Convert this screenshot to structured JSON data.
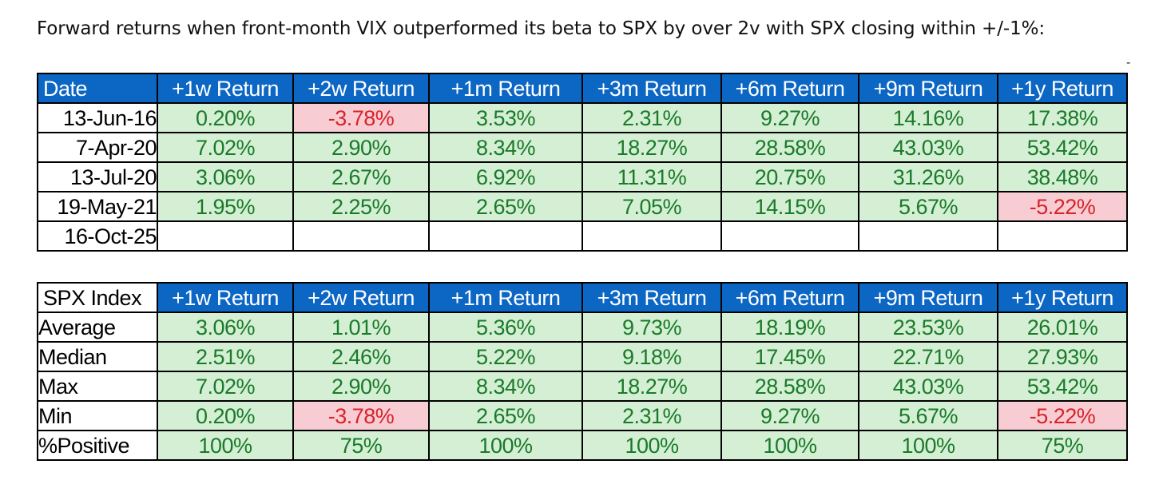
{
  "caption": "Forward returns when front-month VIX outperformed its beta to SPX by over 2v with SPX closing within +/-1%:",
  "corner_mark": "-",
  "colors": {
    "header_bg": "#0c66c4",
    "positive_bg": "#d4efd4",
    "negative_bg": "#f7cdd3",
    "positive_text": "#1a7a2a",
    "negative_text": "#d8232a"
  },
  "table1": {
    "headers": [
      "Date",
      "+1w Return",
      "+2w Return",
      "+1m Return",
      "+3m Return",
      "+6m Return",
      "+9m Return",
      "+1y Return"
    ],
    "rows": [
      {
        "label": "13-Jun-16",
        "cells": [
          {
            "v": "0.20%",
            "s": "pos"
          },
          {
            "v": "-3.78%",
            "s": "neg"
          },
          {
            "v": "3.53%",
            "s": "pos"
          },
          {
            "v": "2.31%",
            "s": "pos"
          },
          {
            "v": "9.27%",
            "s": "pos"
          },
          {
            "v": "14.16%",
            "s": "pos"
          },
          {
            "v": "17.38%",
            "s": "pos"
          }
        ]
      },
      {
        "label": "7-Apr-20",
        "cells": [
          {
            "v": "7.02%",
            "s": "pos"
          },
          {
            "v": "2.90%",
            "s": "pos"
          },
          {
            "v": "8.34%",
            "s": "pos"
          },
          {
            "v": "18.27%",
            "s": "pos"
          },
          {
            "v": "28.58%",
            "s": "pos"
          },
          {
            "v": "43.03%",
            "s": "pos"
          },
          {
            "v": "53.42%",
            "s": "pos"
          }
        ]
      },
      {
        "label": "13-Jul-20",
        "cells": [
          {
            "v": "3.06%",
            "s": "pos"
          },
          {
            "v": "2.67%",
            "s": "pos"
          },
          {
            "v": "6.92%",
            "s": "pos"
          },
          {
            "v": "11.31%",
            "s": "pos"
          },
          {
            "v": "20.75%",
            "s": "pos"
          },
          {
            "v": "31.26%",
            "s": "pos"
          },
          {
            "v": "38.48%",
            "s": "pos"
          }
        ]
      },
      {
        "label": "19-May-21",
        "cells": [
          {
            "v": "1.95%",
            "s": "pos"
          },
          {
            "v": "2.25%",
            "s": "pos"
          },
          {
            "v": "2.65%",
            "s": "pos"
          },
          {
            "v": "7.05%",
            "s": "pos"
          },
          {
            "v": "14.15%",
            "s": "pos"
          },
          {
            "v": "5.67%",
            "s": "pos"
          },
          {
            "v": "-5.22%",
            "s": "neg"
          }
        ]
      },
      {
        "label": "16-Oct-25",
        "cells": [
          {
            "v": "",
            "s": "empty"
          },
          {
            "v": "",
            "s": "empty"
          },
          {
            "v": "",
            "s": "empty"
          },
          {
            "v": "",
            "s": "empty"
          },
          {
            "v": "",
            "s": "empty"
          },
          {
            "v": "",
            "s": "empty"
          },
          {
            "v": "",
            "s": "empty"
          }
        ]
      }
    ]
  },
  "table2": {
    "headers": [
      "SPX Index",
      "+1w Return",
      "+2w Return",
      "+1m Return",
      "+3m Return",
      "+6m Return",
      "+9m Return",
      "+1y Return"
    ],
    "rows": [
      {
        "label": "Average",
        "cells": [
          {
            "v": "3.06%",
            "s": "pos"
          },
          {
            "v": "1.01%",
            "s": "pos"
          },
          {
            "v": "5.36%",
            "s": "pos"
          },
          {
            "v": "9.73%",
            "s": "pos"
          },
          {
            "v": "18.19%",
            "s": "pos"
          },
          {
            "v": "23.53%",
            "s": "pos"
          },
          {
            "v": "26.01%",
            "s": "pos"
          }
        ]
      },
      {
        "label": "Median",
        "cells": [
          {
            "v": "2.51%",
            "s": "pos"
          },
          {
            "v": "2.46%",
            "s": "pos"
          },
          {
            "v": "5.22%",
            "s": "pos"
          },
          {
            "v": "9.18%",
            "s": "pos"
          },
          {
            "v": "17.45%",
            "s": "pos"
          },
          {
            "v": "22.71%",
            "s": "pos"
          },
          {
            "v": "27.93%",
            "s": "pos"
          }
        ]
      },
      {
        "label": "Max",
        "cells": [
          {
            "v": "7.02%",
            "s": "pos"
          },
          {
            "v": "2.90%",
            "s": "pos"
          },
          {
            "v": "8.34%",
            "s": "pos"
          },
          {
            "v": "18.27%",
            "s": "pos"
          },
          {
            "v": "28.58%",
            "s": "pos"
          },
          {
            "v": "43.03%",
            "s": "pos"
          },
          {
            "v": "53.42%",
            "s": "pos"
          }
        ]
      },
      {
        "label": "Min",
        "cells": [
          {
            "v": "0.20%",
            "s": "pos"
          },
          {
            "v": "-3.78%",
            "s": "neg"
          },
          {
            "v": "2.65%",
            "s": "pos"
          },
          {
            "v": "2.31%",
            "s": "pos"
          },
          {
            "v": "9.27%",
            "s": "pos"
          },
          {
            "v": "5.67%",
            "s": "pos"
          },
          {
            "v": "-5.22%",
            "s": "neg"
          }
        ]
      },
      {
        "label": "%Positive",
        "cells": [
          {
            "v": "100%",
            "s": "pos"
          },
          {
            "v": "75%",
            "s": "pos"
          },
          {
            "v": "100%",
            "s": "pos"
          },
          {
            "v": "100%",
            "s": "pos"
          },
          {
            "v": "100%",
            "s": "pos"
          },
          {
            "v": "100%",
            "s": "pos"
          },
          {
            "v": "75%",
            "s": "pos"
          }
        ]
      }
    ]
  }
}
